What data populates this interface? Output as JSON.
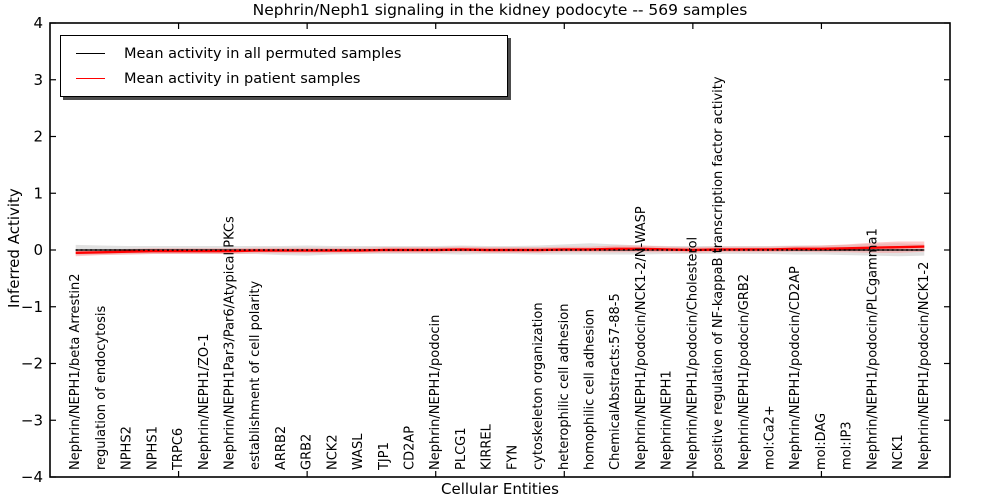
{
  "colors": {
    "axis": "#000000",
    "background": "#ffffff",
    "permuted_line": "#000000",
    "patient_line": "#ff0000",
    "gray_band": "#c9c9c9",
    "pink_band": "#ff8888",
    "legend_shadow": "#4d4d4d"
  },
  "chart_data": {
    "type": "line",
    "title": "Nephrin/Neph1 signaling in the kidney podocyte -- 569 samples",
    "xlabel": "Cellular Entities",
    "ylabel": "Inferred Activity",
    "xlim": [
      0,
      35
    ],
    "ylim": [
      -4,
      4
    ],
    "grid": false,
    "legend_position": "upper left",
    "ytick_values": [
      -4,
      -3,
      -2,
      -1,
      0,
      1,
      2,
      3,
      4
    ],
    "ytick_labels": [
      "−4",
      "−3",
      "−2",
      "−1",
      "0",
      "1",
      "2",
      "3",
      "4"
    ],
    "xtick_values": [
      5,
      10,
      15,
      20,
      25,
      30
    ],
    "categories": [
      "Nephrin/NEPH1/beta Arrestin2",
      "regulation of endocytosis",
      "NPHS2",
      "NPHS1",
      "TRPC6",
      "Nephrin/NEPH1/ZO-1",
      "Nephrin/NEPH1Par3/Par6/Atypical PKCs",
      "establishment of cell polarity",
      "ARRB2",
      "GRB2",
      "NCK2",
      "WASL",
      "TJP1",
      "CD2AP",
      "Nephrin/NEPH1/podocin",
      "PLCG1",
      "KIRREL",
      "FYN",
      "cytoskeleton organization",
      "heterophilic cell adhesion",
      "homophilic cell adhesion",
      "ChemicalAbstracts:57-88-5",
      "Nephrin/NEPH1/podocin/NCK1-2/N-WASP",
      "Nephrin/NEPH1",
      "Nephrin/NEPH1/podocin/Cholesterol",
      "positive regulation of NF-kappaB transcription factor activity",
      "Nephrin/NEPH1/podocin/GRB2",
      "mol:Ca2+",
      "Nephrin/NEPH1/podocin/CD2AP",
      "mol:DAG",
      "mol:IP3",
      "Nephrin/NEPH1/podocin/PLCgamma1",
      "NCK1",
      "Nephrin/NEPH1/podocin/NCK1-2"
    ],
    "series": [
      {
        "name": "Mean activity in all permuted samples",
        "color": "#000000",
        "values": [
          0,
          0,
          0,
          0,
          0,
          0,
          0,
          0,
          0,
          0,
          0,
          0,
          0,
          0,
          0,
          0,
          0,
          0,
          0,
          0,
          0,
          0,
          0,
          0,
          0,
          0,
          0,
          0,
          0,
          0,
          0,
          0,
          0,
          0
        ]
      },
      {
        "name": "Mean activity in patient samples",
        "color": "#ff0000",
        "values": [
          -0.05,
          -0.04,
          -0.03,
          -0.02,
          -0.02,
          -0.02,
          -0.02,
          -0.01,
          -0.01,
          -0.01,
          -0.01,
          -0.01,
          0.0,
          0.0,
          0.0,
          0.01,
          0.0,
          0.0,
          0.0,
          0.01,
          0.01,
          0.02,
          0.02,
          0.01,
          0.0,
          0.01,
          0.01,
          0.01,
          0.02,
          0.02,
          0.03,
          0.04,
          0.05,
          0.06
        ]
      }
    ],
    "bands": {
      "gray_upper": [
        0.09,
        0.08,
        0.07,
        0.07,
        0.07,
        0.07,
        0.07,
        0.07,
        0.07,
        0.08,
        0.07,
        0.07,
        0.07,
        0.07,
        0.07,
        0.08,
        0.07,
        0.07,
        0.08,
        0.1,
        0.12,
        0.1,
        0.08,
        0.07,
        0.07,
        0.07,
        0.07,
        0.07,
        0.08,
        0.08,
        0.09,
        0.11,
        0.12,
        0.1
      ],
      "gray_lower": [
        0.09,
        0.08,
        0.08,
        0.07,
        0.07,
        0.07,
        0.07,
        0.07,
        0.09,
        0.1,
        0.08,
        0.07,
        0.07,
        0.07,
        0.07,
        0.08,
        0.07,
        0.07,
        0.08,
        0.08,
        0.08,
        0.08,
        0.08,
        0.07,
        0.07,
        0.07,
        0.07,
        0.07,
        0.08,
        0.08,
        0.09,
        0.1,
        0.11,
        0.1
      ],
      "pink_halfwidth": [
        0.06,
        0.05,
        0.05,
        0.05,
        0.05,
        0.05,
        0.05,
        0.05,
        0.05,
        0.05,
        0.05,
        0.05,
        0.05,
        0.05,
        0.05,
        0.05,
        0.05,
        0.05,
        0.05,
        0.05,
        0.05,
        0.06,
        0.06,
        0.05,
        0.05,
        0.05,
        0.05,
        0.05,
        0.05,
        0.06,
        0.07,
        0.09,
        0.1,
        0.09
      ]
    }
  }
}
